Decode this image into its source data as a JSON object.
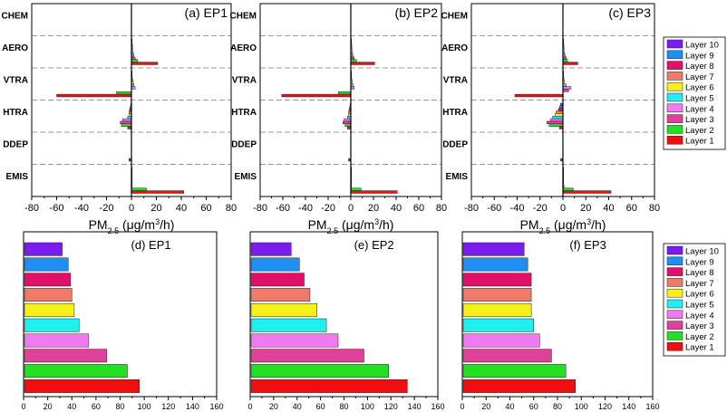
{
  "legend": {
    "layers": [
      "Layer 10",
      "Layer 9",
      "Layer 8",
      "Layer 7",
      "Layer 6",
      "Layer 5",
      "Layer 4",
      "Layer 3",
      "Layer 2",
      "Layer 1"
    ],
    "colors": [
      "#7a1cf0",
      "#1e8ff0",
      "#e0106a",
      "#f07a6a",
      "#f5f01a",
      "#1ef0f0",
      "#f07af0",
      "#e0409a",
      "#22e022",
      "#ee1010"
    ]
  },
  "chart_data": [
    {
      "type": "bar",
      "orientation": "horizontal",
      "title": "(a) EP1",
      "xlabel": "PM2.5 (μg/m3/h)",
      "xlabel_parts": {
        "pre": "PM",
        "sub": "2.5",
        "mid": " (μg/m",
        "sup": "3",
        "post": "/h)"
      },
      "xlim": [
        -80,
        80
      ],
      "xticks": [
        -80,
        -60,
        -40,
        -20,
        0,
        20,
        40,
        60,
        80
      ],
      "categories": [
        "CHEM",
        "AERO",
        "VTRA",
        "HTRA",
        "DDEP",
        "EMIS"
      ],
      "series": [
        {
          "name": "Layer 10",
          "values": [
            0,
            0.3,
            0.3,
            -0.5,
            0,
            0.3
          ]
        },
        {
          "name": "Layer 9",
          "values": [
            0,
            0.5,
            0.5,
            -1,
            0,
            0.5
          ]
        },
        {
          "name": "Layer 8",
          "values": [
            0,
            0.8,
            0.5,
            -1.5,
            0,
            0.5
          ]
        },
        {
          "name": "Layer 7",
          "values": [
            0,
            1,
            1,
            -2,
            0,
            0.5
          ]
        },
        {
          "name": "Layer 6",
          "values": [
            0,
            1,
            1.5,
            -2,
            0,
            0.5
          ]
        },
        {
          "name": "Layer 5",
          "values": [
            0,
            1.5,
            2,
            -3,
            0,
            0.5
          ]
        },
        {
          "name": "Layer 4",
          "values": [
            0,
            2,
            3,
            -7,
            0,
            0.5
          ]
        },
        {
          "name": "Layer 3",
          "values": [
            0,
            3,
            0,
            -9,
            0,
            0.5
          ]
        },
        {
          "name": "Layer 2",
          "values": [
            0,
            5,
            -12,
            -8,
            0,
            12
          ]
        },
        {
          "name": "Layer 1",
          "values": [
            0,
            21,
            -60,
            -3,
            -2,
            42
          ]
        }
      ],
      "legend": "none"
    },
    {
      "type": "bar",
      "orientation": "horizontal",
      "title": "(b) EP2",
      "xlabel": "PM2.5 (μg/m3/h)",
      "xlabel_parts": {
        "pre": "PM",
        "sub": "2.5",
        "mid": " (μg/m",
        "sup": "3",
        "post": "/h)"
      },
      "xlim": [
        -80,
        80
      ],
      "xticks": [
        -80,
        -60,
        -40,
        -20,
        0,
        20,
        40,
        60,
        80
      ],
      "categories": [
        "CHEM",
        "AERO",
        "VTRA",
        "HTRA",
        "DDEP",
        "EMIS"
      ],
      "series": [
        {
          "name": "Layer 10",
          "values": [
            0,
            0.3,
            0.3,
            -0.5,
            0,
            0.3
          ]
        },
        {
          "name": "Layer 9",
          "values": [
            0,
            0.5,
            0.5,
            -1,
            0,
            0.5
          ]
        },
        {
          "name": "Layer 8",
          "values": [
            0,
            0.8,
            0.5,
            -1.5,
            0,
            0.5
          ]
        },
        {
          "name": "Layer 7",
          "values": [
            0,
            1,
            1,
            -2,
            0,
            0.5
          ]
        },
        {
          "name": "Layer 6",
          "values": [
            0,
            1,
            1.5,
            -2,
            0,
            0.5
          ]
        },
        {
          "name": "Layer 5",
          "values": [
            0,
            1.5,
            2,
            -3,
            0,
            0.5
          ]
        },
        {
          "name": "Layer 4",
          "values": [
            0,
            2,
            3,
            -6,
            0,
            0.5
          ]
        },
        {
          "name": "Layer 3",
          "values": [
            0,
            3,
            0,
            -7,
            0,
            0.5
          ]
        },
        {
          "name": "Layer 2",
          "values": [
            0,
            5,
            -11,
            -5,
            0,
            9
          ]
        },
        {
          "name": "Layer 1",
          "values": [
            0,
            21,
            -61,
            -3,
            -2,
            41
          ]
        }
      ],
      "legend": "none"
    },
    {
      "type": "bar",
      "orientation": "horizontal",
      "title": "(c) EP3",
      "xlabel": "PM2.5 (μg/m3/h)",
      "xlabel_parts": {
        "pre": "PM",
        "sub": "2.5",
        "mid": " (μg/m",
        "sup": "3",
        "post": "/h)"
      },
      "xlim": [
        -80,
        80
      ],
      "xticks": [
        -80,
        -60,
        -40,
        -20,
        0,
        20,
        40,
        60,
        80
      ],
      "categories": [
        "CHEM",
        "AERO",
        "VTRA",
        "HTRA",
        "DDEP",
        "EMIS"
      ],
      "series": [
        {
          "name": "Layer 10",
          "values": [
            0,
            0.3,
            0.3,
            -2,
            0,
            0.3
          ]
        },
        {
          "name": "Layer 9",
          "values": [
            0,
            0.5,
            0.5,
            -3,
            0,
            0.5
          ]
        },
        {
          "name": "Layer 8",
          "values": [
            0,
            0.8,
            0.5,
            -4,
            0,
            0.5
          ]
        },
        {
          "name": "Layer 7",
          "values": [
            0,
            1,
            1,
            -6,
            0,
            0.5
          ]
        },
        {
          "name": "Layer 6",
          "values": [
            0,
            1,
            1.5,
            -7,
            0,
            0.5
          ]
        },
        {
          "name": "Layer 5",
          "values": [
            0,
            1.5,
            3,
            -9,
            0,
            0.5
          ]
        },
        {
          "name": "Layer 4",
          "values": [
            0,
            2,
            7,
            -11,
            0,
            0.5
          ]
        },
        {
          "name": "Layer 3",
          "values": [
            0,
            3,
            5,
            -14,
            0,
            1
          ]
        },
        {
          "name": "Layer 2",
          "values": [
            0,
            4,
            0,
            -12,
            0,
            9
          ]
        },
        {
          "name": "Layer 1",
          "values": [
            0,
            13,
            -42,
            -3,
            -2,
            42
          ]
        }
      ],
      "legend": "right"
    },
    {
      "type": "bar",
      "orientation": "horizontal",
      "title": "(d) EP1",
      "xlabel": "PM2.5 (μg/m3)",
      "xlabel_parts": {
        "pre": "PM",
        "sub": "2.5",
        "mid": " (μg/m",
        "sup": "3",
        "post": ")"
      },
      "xlim": [
        0,
        160
      ],
      "xticks": [
        0,
        20,
        40,
        60,
        80,
        100,
        120,
        140,
        160
      ],
      "categories": [
        "Layer 10",
        "Layer 9",
        "Layer 8",
        "Layer 7",
        "Layer 6",
        "Layer 5",
        "Layer 4",
        "Layer 3",
        "Layer 2",
        "Layer 1"
      ],
      "values": [
        32,
        37,
        39,
        40,
        42,
        46,
        54,
        69,
        86,
        96
      ],
      "legend": "none"
    },
    {
      "type": "bar",
      "orientation": "horizontal",
      "title": "(e) EP2",
      "xlabel": "PM2.5 (μg/m3)",
      "xlabel_parts": {
        "pre": "PM",
        "sub": "2.5",
        "mid": " (μg/m",
        "sup": "3",
        "post": ")"
      },
      "xlim": [
        0,
        160
      ],
      "xticks": [
        0,
        20,
        40,
        60,
        80,
        100,
        120,
        140,
        160
      ],
      "categories": [
        "Layer 10",
        "Layer 9",
        "Layer 8",
        "Layer 7",
        "Layer 6",
        "Layer 5",
        "Layer 4",
        "Layer 3",
        "Layer 2",
        "Layer 1"
      ],
      "values": [
        35,
        42,
        46,
        51,
        57,
        65,
        75,
        97,
        118,
        134
      ],
      "legend": "none"
    },
    {
      "type": "bar",
      "orientation": "horizontal",
      "title": "(f) EP3",
      "xlabel": "PM2.5 (μg/m3)",
      "xlabel_parts": {
        "pre": "PM",
        "sub": "2.5",
        "mid": " (μg/m",
        "sup": "3",
        "post": ")"
      },
      "xlim": [
        0,
        160
      ],
      "xticks": [
        0,
        20,
        40,
        60,
        80,
        100,
        120,
        140,
        160
      ],
      "categories": [
        "Layer 10",
        "Layer 9",
        "Layer 8",
        "Layer 7",
        "Layer 6",
        "Layer 5",
        "Layer 4",
        "Layer 3",
        "Layer 2",
        "Layer 1"
      ],
      "values": [
        52,
        55,
        58,
        58,
        58,
        60,
        65,
        75,
        87,
        95
      ],
      "legend": "right"
    }
  ]
}
